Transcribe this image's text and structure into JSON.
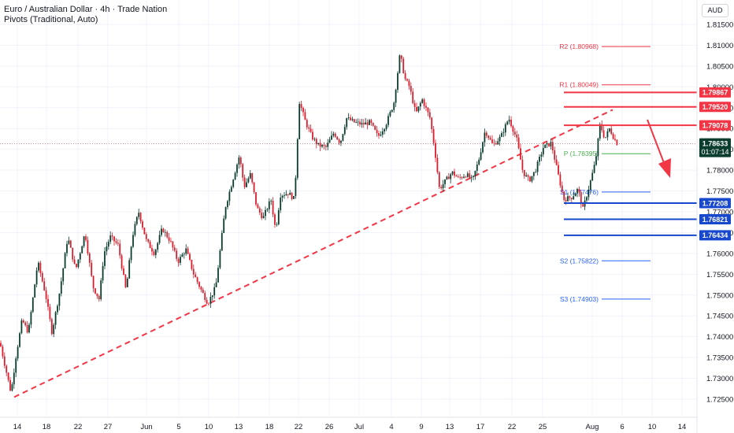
{
  "header": {
    "title": "Euro / Australian Dollar · 4h · Trade Nation",
    "subtitle": "Pivots (Traditional, Auto)",
    "currency": "AUD"
  },
  "colors": {
    "up": "#0b3d2e",
    "down": "#d81e2c",
    "resistance": "#f23645",
    "support": "#1848cc",
    "pivot_p": "#4caf50",
    "pivot_s": "#2962ff",
    "pivot_r": "#f23645",
    "trendline": "#f23645",
    "price_tag": "#0b3d2e"
  },
  "chart_data": {
    "type": "candlestick",
    "ylim": [
      1.7225,
      1.8175
    ],
    "y_ticks": [
      "1.81500",
      "1.81000",
      "1.80500",
      "1.80000",
      "1.79500",
      "1.79000",
      "1.78500",
      "1.78000",
      "1.77500",
      "1.77000",
      "1.76500",
      "1.76000",
      "1.75500",
      "1.75000",
      "1.74500",
      "1.74000",
      "1.73500",
      "1.73000",
      "1.72500"
    ],
    "x_ticks": [
      "14",
      "18",
      "22",
      "27",
      "Jun",
      "5",
      "10",
      "13",
      "18",
      "22",
      "26",
      "Jul",
      "4",
      "9",
      "13",
      "17",
      "22",
      "25",
      "Aug",
      "6",
      "10",
      "14"
    ],
    "current_price": {
      "value": "1.78633",
      "countdown": "01:07:14"
    },
    "pivots": [
      {
        "name": "R2",
        "label": "R2 (1.80968)",
        "value": 1.80968
      },
      {
        "name": "R1",
        "label": "R1 (1.80049)",
        "value": 1.80049
      },
      {
        "name": "P",
        "label": "P (1.78395)",
        "value": 1.78395
      },
      {
        "name": "S1",
        "label": "S1 (1.77476)",
        "value": 1.77476
      },
      {
        "name": "S2",
        "label": "S2 (1.75822)",
        "value": 1.75822
      },
      {
        "name": "S3",
        "label": "S3 (1.74903)",
        "value": 1.74903
      }
    ],
    "resistance_levels": [
      "1.79867",
      "1.79520",
      "1.79078"
    ],
    "support_levels": [
      "1.77208",
      "1.76821",
      "1.76434"
    ],
    "trendline": {
      "start_price": 1.7255,
      "end_price": 1.7945,
      "style": "dashed"
    },
    "arrow": {
      "direction": "down"
    },
    "path": [
      [
        0,
        1.7385
      ],
      [
        14,
        1.7265
      ],
      [
        20,
        1.735
      ],
      [
        28,
        1.744
      ],
      [
        36,
        1.741
      ],
      [
        48,
        1.758
      ],
      [
        58,
        1.75
      ],
      [
        66,
        1.741
      ],
      [
        76,
        1.751
      ],
      [
        86,
        1.764
      ],
      [
        96,
        1.756
      ],
      [
        108,
        1.765
      ],
      [
        118,
        1.752
      ],
      [
        126,
        1.749
      ],
      [
        132,
        1.76
      ],
      [
        140,
        1.764
      ],
      [
        150,
        1.762
      ],
      [
        160,
        1.751
      ],
      [
        168,
        1.764
      ],
      [
        176,
        1.77
      ],
      [
        186,
        1.763
      ],
      [
        196,
        1.76
      ],
      [
        206,
        1.766
      ],
      [
        216,
        1.763
      ],
      [
        226,
        1.758
      ],
      [
        236,
        1.761
      ],
      [
        246,
        1.755
      ],
      [
        256,
        1.751
      ],
      [
        264,
        1.748
      ],
      [
        274,
        1.752
      ],
      [
        286,
        1.771
      ],
      [
        296,
        1.778
      ],
      [
        304,
        1.7835
      ],
      [
        310,
        1.776
      ],
      [
        318,
        1.779
      ],
      [
        326,
        1.771
      ],
      [
        334,
        1.7685
      ],
      [
        344,
        1.773
      ],
      [
        350,
        1.7655
      ],
      [
        356,
        1.774
      ],
      [
        366,
        1.7745
      ],
      [
        374,
        1.773
      ],
      [
        380,
        1.7965
      ],
      [
        388,
        1.7915
      ],
      [
        396,
        1.788
      ],
      [
        404,
        1.786
      ],
      [
        414,
        1.7855
      ],
      [
        424,
        1.789
      ],
      [
        432,
        1.7865
      ],
      [
        440,
        1.7925
      ],
      [
        450,
        1.7915
      ],
      [
        460,
        1.791
      ],
      [
        470,
        1.7915
      ],
      [
        480,
        1.788
      ],
      [
        490,
        1.791
      ],
      [
        500,
        1.796
      ],
      [
        508,
        1.808
      ],
      [
        514,
        1.802
      ],
      [
        520,
        1.8
      ],
      [
        528,
        1.7935
      ],
      [
        536,
        1.797
      ],
      [
        546,
        1.7925
      ],
      [
        552,
        1.785
      ],
      [
        558,
        1.7755
      ],
      [
        566,
        1.7775
      ],
      [
        574,
        1.7795
      ],
      [
        582,
        1.778
      ],
      [
        592,
        1.779
      ],
      [
        600,
        1.7775
      ],
      [
        608,
        1.7825
      ],
      [
        616,
        1.7895
      ],
      [
        626,
        1.786
      ],
      [
        636,
        1.788
      ],
      [
        646,
        1.7925
      ],
      [
        656,
        1.7875
      ],
      [
        664,
        1.7795
      ],
      [
        672,
        1.7775
      ],
      [
        680,
        1.78
      ],
      [
        690,
        1.7855
      ],
      [
        700,
        1.7865
      ],
      [
        708,
        1.7795
      ],
      [
        716,
        1.773
      ],
      [
        726,
        1.7735
      ],
      [
        734,
        1.7755
      ],
      [
        740,
        1.7705
      ],
      [
        748,
        1.776
      ],
      [
        756,
        1.782
      ],
      [
        762,
        1.791
      ],
      [
        768,
        1.7875
      ],
      [
        774,
        1.79
      ],
      [
        780,
        1.7875
      ],
      [
        784,
        1.78633
      ]
    ]
  }
}
